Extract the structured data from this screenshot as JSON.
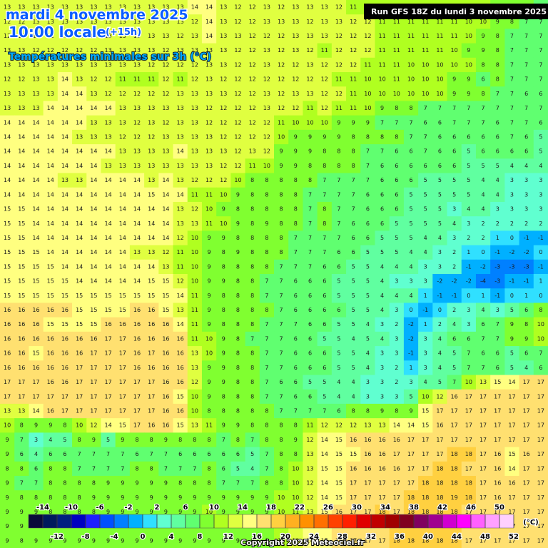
{
  "header": {
    "date": "mardi 4 novembre 2025",
    "time": "10:00 locale",
    "offset": "(+15h)",
    "field": "Températures minimales sur 3h (°C)"
  },
  "run_label": "Run GFS 18Z du lundi 3 novembre 2025",
  "copyright": "Copyright 2025 Meteociel.fr",
  "grid": {
    "rows": [
      [
        13,
        13,
        13,
        13,
        13,
        13,
        13,
        13,
        13,
        13,
        13,
        13,
        13,
        14,
        14,
        13,
        12,
        12,
        13,
        12,
        13,
        13,
        13,
        12,
        11,
        11,
        11,
        11,
        11,
        11,
        11,
        10,
        10,
        10,
        9,
        8,
        8,
        7
      ],
      [
        12,
        12,
        13,
        13,
        13,
        13,
        13,
        13,
        13,
        13,
        13,
        13,
        13,
        12,
        14,
        13,
        12,
        12,
        13,
        13,
        13,
        12,
        13,
        13,
        12,
        12,
        11,
        11,
        11,
        11,
        11,
        11,
        10,
        10,
        9,
        8,
        7,
        7
      ],
      [
        12,
        12,
        12,
        12,
        12,
        12,
        12,
        13,
        13,
        13,
        13,
        13,
        12,
        13,
        14,
        13,
        13,
        12,
        12,
        12,
        13,
        13,
        13,
        12,
        12,
        12,
        11,
        11,
        11,
        11,
        11,
        11,
        10,
        9,
        8,
        7,
        7,
        7
      ],
      [
        13,
        13,
        12,
        12,
        12,
        12,
        12,
        13,
        13,
        13,
        13,
        12,
        13,
        13,
        13,
        13,
        12,
        12,
        13,
        12,
        13,
        12,
        11,
        12,
        12,
        12,
        11,
        11,
        11,
        11,
        11,
        10,
        9,
        9,
        8,
        7,
        7,
        7
      ],
      [
        13,
        13,
        13,
        13,
        13,
        13,
        13,
        13,
        13,
        13,
        12,
        12,
        12,
        12,
        13,
        13,
        12,
        12,
        13,
        12,
        12,
        13,
        12,
        12,
        12,
        11,
        11,
        11,
        10,
        10,
        10,
        10,
        10,
        8,
        8,
        7,
        7,
        7
      ],
      [
        12,
        12,
        13,
        13,
        14,
        13,
        12,
        12,
        11,
        11,
        11,
        12,
        11,
        12,
        13,
        12,
        12,
        12,
        12,
        12,
        12,
        12,
        12,
        11,
        11,
        10,
        10,
        11,
        10,
        10,
        10,
        9,
        9,
        6,
        8,
        7,
        7,
        7
      ],
      [
        13,
        13,
        13,
        13,
        14,
        14,
        13,
        12,
        12,
        12,
        12,
        12,
        13,
        13,
        13,
        13,
        12,
        12,
        13,
        12,
        13,
        13,
        12,
        12,
        11,
        10,
        10,
        10,
        10,
        10,
        10,
        9,
        9,
        8,
        7,
        7,
        6,
        6
      ],
      [
        13,
        13,
        13,
        14,
        14,
        14,
        14,
        14,
        13,
        13,
        13,
        13,
        13,
        13,
        12,
        12,
        12,
        12,
        13,
        12,
        12,
        11,
        12,
        11,
        11,
        10,
        9,
        8,
        8,
        7,
        7,
        7,
        7,
        7,
        7,
        7,
        7,
        7
      ],
      [
        14,
        14,
        14,
        14,
        14,
        14,
        13,
        13,
        13,
        12,
        13,
        12,
        13,
        13,
        12,
        12,
        12,
        12,
        12,
        11,
        10,
        10,
        10,
        9,
        9,
        9,
        7,
        7,
        7,
        6,
        6,
        7,
        7,
        7,
        6,
        7,
        7,
        6
      ],
      [
        14,
        14,
        14,
        14,
        14,
        13,
        13,
        13,
        12,
        12,
        12,
        13,
        13,
        13,
        13,
        12,
        12,
        12,
        12,
        10,
        9,
        9,
        9,
        9,
        8,
        8,
        8,
        8,
        7,
        7,
        6,
        6,
        6,
        6,
        6,
        7,
        6,
        5
      ],
      [
        14,
        14,
        14,
        14,
        14,
        14,
        14,
        14,
        13,
        13,
        13,
        13,
        14,
        13,
        13,
        13,
        12,
        13,
        12,
        9,
        9,
        9,
        8,
        8,
        8,
        7,
        7,
        6,
        6,
        7,
        6,
        6,
        5,
        6,
        6,
        6,
        6,
        5
      ],
      [
        14,
        14,
        14,
        14,
        14,
        14,
        14,
        13,
        13,
        13,
        13,
        13,
        13,
        13,
        13,
        12,
        12,
        11,
        10,
        9,
        9,
        8,
        8,
        8,
        8,
        7,
        6,
        6,
        6,
        6,
        6,
        6,
        5,
        5,
        5,
        4,
        4,
        4
      ],
      [
        14,
        14,
        14,
        14,
        13,
        13,
        14,
        14,
        14,
        14,
        13,
        14,
        13,
        12,
        12,
        12,
        10,
        8,
        8,
        8,
        8,
        8,
        7,
        7,
        7,
        7,
        6,
        6,
        6,
        5,
        5,
        5,
        5,
        4,
        4,
        3,
        3,
        3
      ],
      [
        14,
        14,
        14,
        14,
        14,
        14,
        14,
        14,
        14,
        14,
        15,
        14,
        14,
        11,
        11,
        10,
        9,
        8,
        8,
        8,
        8,
        7,
        7,
        7,
        7,
        6,
        6,
        6,
        5,
        5,
        5,
        5,
        5,
        4,
        4,
        3,
        3,
        3
      ],
      [
        15,
        15,
        14,
        14,
        14,
        14,
        14,
        14,
        14,
        14,
        14,
        14,
        13,
        12,
        10,
        9,
        8,
        8,
        8,
        8,
        8,
        7,
        8,
        7,
        7,
        6,
        6,
        6,
        5,
        5,
        5,
        3,
        4,
        4,
        3,
        3,
        3,
        3
      ],
      [
        15,
        15,
        14,
        14,
        14,
        14,
        14,
        14,
        14,
        14,
        14,
        14,
        13,
        13,
        11,
        10,
        9,
        8,
        9,
        8,
        8,
        7,
        8,
        7,
        6,
        6,
        6,
        5,
        5,
        5,
        5,
        4,
        3,
        2,
        2,
        2,
        2,
        2
      ],
      [
        15,
        15,
        14,
        14,
        14,
        14,
        14,
        14,
        14,
        14,
        14,
        14,
        12,
        10,
        9,
        9,
        8,
        8,
        8,
        8,
        7,
        7,
        7,
        7,
        6,
        6,
        5,
        5,
        5,
        4,
        4,
        3,
        2,
        2,
        1,
        0,
        -1,
        -1
      ],
      [
        15,
        15,
        15,
        14,
        14,
        14,
        14,
        14,
        14,
        13,
        13,
        12,
        11,
        10,
        9,
        8,
        9,
        8,
        8,
        8,
        7,
        7,
        7,
        6,
        6,
        5,
        5,
        5,
        4,
        4,
        3,
        2,
        1,
        0,
        -1,
        -2,
        -2,
        0
      ],
      [
        15,
        15,
        15,
        15,
        14,
        14,
        14,
        14,
        14,
        14,
        14,
        13,
        11,
        10,
        9,
        8,
        8,
        8,
        8,
        7,
        7,
        7,
        6,
        6,
        5,
        5,
        4,
        4,
        4,
        3,
        3,
        2,
        -1,
        -2,
        -3,
        -3,
        -3,
        -1
      ],
      [
        15,
        15,
        15,
        15,
        15,
        14,
        14,
        14,
        14,
        14,
        15,
        15,
        12,
        10,
        9,
        9,
        8,
        8,
        7,
        7,
        6,
        6,
        6,
        5,
        5,
        5,
        4,
        3,
        3,
        3,
        -2,
        -2,
        -2,
        -4,
        -3,
        -1,
        -1,
        1
      ],
      [
        15,
        15,
        15,
        15,
        15,
        15,
        15,
        15,
        15,
        15,
        15,
        15,
        14,
        11,
        9,
        8,
        8,
        8,
        7,
        7,
        6,
        6,
        6,
        5,
        5,
        5,
        4,
        4,
        4,
        1,
        -1,
        -1,
        0,
        1,
        -1,
        0,
        1,
        0
      ],
      [
        16,
        16,
        16,
        16,
        16,
        15,
        15,
        15,
        15,
        16,
        16,
        15,
        13,
        11,
        9,
        8,
        8,
        8,
        8,
        7,
        6,
        6,
        6,
        6,
        5,
        5,
        4,
        3,
        0,
        -1,
        0,
        2,
        3,
        4,
        3,
        5,
        6,
        8
      ],
      [
        16,
        16,
        16,
        15,
        15,
        15,
        15,
        16,
        16,
        16,
        16,
        16,
        14,
        11,
        9,
        8,
        8,
        8,
        7,
        7,
        7,
        6,
        6,
        5,
        5,
        4,
        3,
        2,
        -2,
        1,
        2,
        4,
        3,
        6,
        7,
        9,
        8,
        10
      ],
      [
        16,
        16,
        16,
        16,
        16,
        16,
        16,
        17,
        17,
        16,
        16,
        16,
        16,
        11,
        10,
        9,
        8,
        7,
        7,
        7,
        6,
        6,
        5,
        5,
        4,
        5,
        4,
        3,
        -2,
        3,
        4,
        6,
        6,
        7,
        7,
        9,
        9,
        10
      ],
      [
        16,
        16,
        15,
        16,
        16,
        16,
        17,
        17,
        17,
        16,
        17,
        16,
        16,
        13,
        10,
        9,
        8,
        8,
        7,
        7,
        6,
        6,
        6,
        5,
        5,
        4,
        3,
        3,
        -1,
        3,
        4,
        5,
        7,
        6,
        6,
        5,
        6,
        7
      ],
      [
        16,
        16,
        16,
        16,
        16,
        17,
        17,
        17,
        17,
        16,
        16,
        16,
        16,
        13,
        9,
        9,
        8,
        8,
        7,
        7,
        6,
        6,
        6,
        5,
        5,
        4,
        3,
        2,
        1,
        3,
        4,
        5,
        7,
        7,
        6,
        5,
        4,
        6
      ],
      [
        17,
        17,
        17,
        16,
        16,
        17,
        17,
        17,
        17,
        17,
        17,
        16,
        16,
        12,
        9,
        9,
        8,
        8,
        7,
        6,
        6,
        5,
        5,
        4,
        4,
        3,
        3,
        2,
        3,
        4,
        5,
        7,
        10,
        13,
        15,
        14,
        17,
        17
      ],
      [
        17,
        17,
        17,
        17,
        17,
        17,
        17,
        17,
        17,
        17,
        17,
        16,
        15,
        10,
        9,
        8,
        8,
        8,
        7,
        7,
        6,
        6,
        5,
        4,
        4,
        3,
        3,
        3,
        5,
        10,
        12,
        16,
        17,
        17,
        17,
        17,
        17,
        17
      ],
      [
        13,
        13,
        14,
        16,
        17,
        17,
        17,
        17,
        17,
        17,
        17,
        16,
        16,
        10,
        8,
        8,
        8,
        8,
        8,
        7,
        7,
        7,
        7,
        6,
        8,
        8,
        9,
        8,
        9,
        15,
        17,
        17,
        17,
        17,
        17,
        17,
        17,
        17
      ],
      [
        10,
        8,
        9,
        9,
        8,
        10,
        12,
        14,
        15,
        17,
        16,
        16,
        15,
        13,
        11,
        9,
        9,
        8,
        8,
        8,
        8,
        11,
        12,
        12,
        12,
        13,
        13,
        14,
        14,
        15,
        16,
        17,
        17,
        17,
        17,
        17,
        17,
        17
      ],
      [
        9,
        7,
        3,
        4,
        5,
        8,
        9,
        5,
        9,
        8,
        8,
        9,
        8,
        8,
        8,
        7,
        8,
        7,
        8,
        8,
        9,
        12,
        14,
        15,
        16,
        16,
        16,
        16,
        17,
        17,
        17,
        17,
        17,
        17,
        17,
        17,
        17,
        17
      ],
      [
        9,
        6,
        4,
        6,
        6,
        7,
        7,
        7,
        7,
        6,
        7,
        7,
        6,
        6,
        6,
        6,
        6,
        5,
        7,
        8,
        8,
        13,
        14,
        15,
        15,
        16,
        16,
        17,
        17,
        17,
        17,
        18,
        18,
        17,
        16,
        15,
        16,
        17
      ],
      [
        8,
        8,
        6,
        8,
        8,
        7,
        7,
        7,
        7,
        8,
        8,
        7,
        7,
        7,
        8,
        6,
        5,
        4,
        7,
        8,
        10,
        13,
        15,
        15,
        16,
        16,
        16,
        16,
        17,
        17,
        18,
        18,
        17,
        17,
        16,
        14,
        17,
        17
      ],
      [
        9,
        7,
        7,
        8,
        8,
        8,
        8,
        9,
        9,
        9,
        9,
        9,
        8,
        8,
        8,
        7,
        7,
        7,
        8,
        8,
        10,
        12,
        14,
        15,
        17,
        17,
        17,
        17,
        17,
        18,
        18,
        18,
        18,
        17,
        16,
        16,
        17,
        17
      ],
      [
        9,
        8,
        8,
        8,
        8,
        8,
        9,
        9,
        9,
        9,
        9,
        9,
        9,
        9,
        9,
        9,
        9,
        9,
        9,
        10,
        10,
        12,
        14,
        15,
        17,
        17,
        17,
        17,
        18,
        18,
        18,
        19,
        18,
        17,
        16,
        17,
        17,
        17
      ],
      [
        9,
        9,
        9,
        8,
        8,
        8,
        8,
        9,
        9,
        9,
        9,
        9,
        9,
        9,
        10,
        9,
        9,
        9,
        9,
        10,
        11,
        13,
        15,
        16,
        17,
        17,
        18,
        17,
        18,
        18,
        18,
        18,
        17,
        17,
        17,
        17,
        17,
        17
      ],
      [
        9,
        9,
        9,
        9,
        8,
        8,
        9,
        9,
        9,
        9,
        9,
        9,
        9,
        9,
        9,
        9,
        9,
        9,
        9,
        10,
        12,
        14,
        15,
        16,
        17,
        17,
        17,
        18,
        18,
        18,
        18,
        18,
        17,
        17,
        17,
        17,
        17,
        17
      ],
      [
        9,
        8,
        9,
        9,
        9,
        9,
        9,
        9,
        9,
        9,
        9,
        9,
        9,
        9,
        9,
        9,
        9,
        9,
        9,
        10,
        12,
        14,
        15,
        16,
        17,
        17,
        17,
        18,
        18,
        18,
        18,
        18,
        17,
        17,
        17,
        17,
        17,
        17
      ]
    ]
  },
  "legend": {
    "unit": "(°C)",
    "ticks": [
      -14,
      -12,
      -10,
      -8,
      -6,
      -4,
      -2,
      0,
      2,
      4,
      6,
      8,
      10,
      12,
      14,
      16,
      18,
      20,
      22,
      24,
      26,
      28,
      30,
      32,
      34,
      36,
      38,
      40,
      42,
      44,
      46,
      48,
      50,
      52
    ],
    "colors": [
      "#0a0a3a",
      "#001a5c",
      "#002080",
      "#0000c0",
      "#1e1eff",
      "#0050ff",
      "#0080ff",
      "#00b0ff",
      "#30e0ff",
      "#60ffd0",
      "#60ffa0",
      "#60ff70",
      "#80ff30",
      "#b0ff20",
      "#e0ff40",
      "#ffff80",
      "#ffe070",
      "#ffd040",
      "#ffb020",
      "#ff9000",
      "#ff7000",
      "#ff4000",
      "#ff2000",
      "#e00000",
      "#c00000",
      "#a00000",
      "#800020",
      "#800060",
      "#a00090",
      "#d000d0",
      "#ff00ff",
      "#ff60ff",
      "#ffa0ff",
      "#ffd0ff"
    ]
  }
}
